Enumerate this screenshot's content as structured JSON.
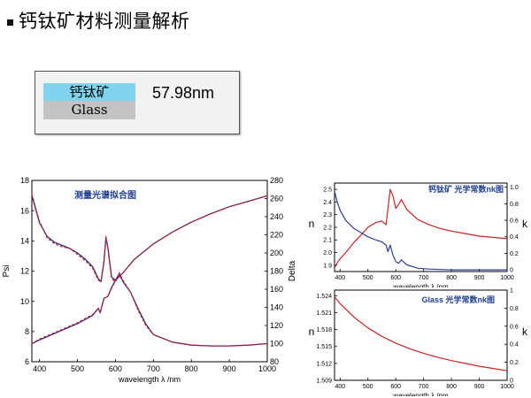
{
  "page": {
    "title": "钙钛矿材料测量解析"
  },
  "stack": {
    "top_layer": "钙钛矿",
    "bottom_layer": "Glass",
    "thickness": "57.98nm"
  },
  "colors": {
    "measured": "#2b2b8c",
    "fitted": "#cc2222",
    "layer_top": "#7fd3ef",
    "layer_bottom": "#c3c3c3"
  },
  "chart_data": [
    {
      "type": "line",
      "title": "测量光谱拟合图",
      "xlabel": "wavelength λ /nm",
      "ylabel": "Psi",
      "y2label": "Delta",
      "xlim": [
        380,
        1000
      ],
      "ylim": [
        6,
        18
      ],
      "y2lim": [
        80,
        280
      ],
      "xticks": [
        400,
        500,
        600,
        700,
        800,
        900,
        1000
      ],
      "yticks": [
        6,
        8,
        10,
        12,
        14,
        16,
        18
      ],
      "y2ticks": [
        80,
        100,
        120,
        140,
        160,
        180,
        200,
        220,
        240,
        260,
        280
      ],
      "series": [
        {
          "axis": "left",
          "style": "measured",
          "x": [
            380,
            390,
            400,
            420,
            440,
            460,
            480,
            500,
            520,
            540,
            555,
            562,
            570,
            575,
            580,
            590,
            600,
            610,
            620,
            640,
            660,
            680,
            700,
            750,
            800,
            850,
            900,
            950,
            1000
          ],
          "y": [
            17.0,
            16.1,
            15.2,
            14.3,
            13.9,
            13.7,
            13.5,
            13.2,
            12.8,
            12.3,
            11.5,
            11.3,
            12.6,
            14.2,
            13.6,
            11.6,
            11.4,
            11.8,
            11.3,
            10.6,
            9.5,
            8.5,
            7.8,
            7.3,
            7.1,
            7.05,
            7.05,
            7.1,
            7.2
          ]
        },
        {
          "axis": "left",
          "style": "fitted",
          "x": [
            380,
            390,
            400,
            420,
            440,
            460,
            480,
            500,
            520,
            540,
            555,
            562,
            570,
            575,
            580,
            590,
            600,
            610,
            620,
            640,
            660,
            680,
            700,
            750,
            800,
            850,
            900,
            950,
            1000
          ],
          "y": [
            17.1,
            16.2,
            15.3,
            14.2,
            13.8,
            13.6,
            13.5,
            13.1,
            12.7,
            12.2,
            11.4,
            11.3,
            12.7,
            14.3,
            13.5,
            11.5,
            11.3,
            11.9,
            11.4,
            10.6,
            9.4,
            8.4,
            7.8,
            7.3,
            7.1,
            7.05,
            7.05,
            7.1,
            7.2
          ]
        },
        {
          "axis": "right",
          "style": "measured",
          "x": [
            380,
            400,
            450,
            500,
            540,
            555,
            560,
            570,
            580,
            590,
            600,
            620,
            650,
            700,
            750,
            800,
            850,
            900,
            950,
            1000
          ],
          "y": [
            100,
            104,
            113,
            122,
            131,
            139,
            134,
            150,
            152,
            162,
            170,
            178,
            193,
            210,
            223,
            234,
            243,
            251,
            257,
            263
          ]
        },
        {
          "axis": "right",
          "style": "fitted",
          "x": [
            380,
            400,
            450,
            500,
            540,
            555,
            560,
            570,
            580,
            590,
            600,
            620,
            650,
            700,
            750,
            800,
            850,
            900,
            950,
            1000
          ],
          "y": [
            100,
            105,
            114,
            123,
            132,
            139,
            135,
            150,
            152,
            161,
            169,
            178,
            193,
            210,
            223,
            234,
            243,
            251,
            257,
            263
          ]
        }
      ]
    },
    {
      "type": "line",
      "title": "钙钛矿 光学常数nk图",
      "xlabel": "wavelength λ /nm",
      "ylabel": "n",
      "y2label": "k",
      "xlim": [
        380,
        1000
      ],
      "ylim": [
        1.85,
        2.55
      ],
      "y2lim": [
        -0.02,
        1.05
      ],
      "xticks": [
        400,
        500,
        600,
        700,
        800,
        900,
        1000
      ],
      "yticks": [
        1.9,
        2.0,
        2.1,
        2.2,
        2.3,
        2.4,
        2.5
      ],
      "ytick_labels": [
        "1.9",
        "2.0",
        "2.1",
        "2.2",
        "2.3",
        "2.4",
        "2.5"
      ],
      "y2ticks": [
        0,
        0.2,
        0.4,
        0.6,
        0.8,
        1.0
      ],
      "y2tick_labels": [
        "0",
        "0.2",
        "0.4",
        "0.6",
        "0.8",
        "1.0"
      ],
      "series": [
        {
          "axis": "left",
          "role": "n",
          "color": "#cc2222",
          "x": [
            380,
            390,
            400,
            420,
            450,
            480,
            500,
            530,
            550,
            565,
            572,
            580,
            590,
            600,
            610,
            620,
            640,
            680,
            720,
            760,
            800,
            850,
            900,
            950,
            1000
          ],
          "y": [
            1.88,
            1.92,
            1.95,
            2.0,
            2.08,
            2.15,
            2.2,
            2.24,
            2.25,
            2.22,
            2.35,
            2.5,
            2.45,
            2.35,
            2.38,
            2.42,
            2.34,
            2.26,
            2.22,
            2.19,
            2.17,
            2.15,
            2.13,
            2.12,
            2.11
          ]
        },
        {
          "axis": "right",
          "role": "k",
          "color": "#2b3f8c",
          "x": [
            380,
            390,
            400,
            420,
            450,
            480,
            500,
            530,
            550,
            565,
            572,
            580,
            590,
            600,
            610,
            620,
            640,
            680,
            720,
            760,
            800,
            850,
            900,
            950,
            1000
          ],
          "y": [
            0.95,
            0.82,
            0.72,
            0.6,
            0.5,
            0.44,
            0.4,
            0.36,
            0.34,
            0.3,
            0.22,
            0.3,
            0.18,
            0.1,
            0.08,
            0.12,
            0.06,
            0.02,
            0.01,
            0.005,
            0,
            0,
            0,
            0,
            0
          ]
        }
      ]
    },
    {
      "type": "line",
      "title": "Glass 光学常数nk图",
      "xlabel": "wavelength λ /nm",
      "ylabel": "n",
      "y2label": "k",
      "xlim": [
        380,
        1000
      ],
      "ylim": [
        1.509,
        1.525
      ],
      "y2lim": [
        0,
        1
      ],
      "xticks": [
        400,
        500,
        600,
        700,
        800,
        900,
        1000
      ],
      "yticks": [
        1.509,
        1.512,
        1.515,
        1.518,
        1.521,
        1.524
      ],
      "ytick_labels": [
        "1.509",
        "1.512",
        "1.515",
        "1.518",
        "1.521",
        "1.524"
      ],
      "y2ticks": [
        0,
        0.2,
        0.4,
        0.6,
        0.8,
        1.0
      ],
      "y2tick_labels": [
        "0",
        "0.2",
        "0.4",
        "0.6",
        "0.8",
        "1"
      ],
      "series": [
        {
          "axis": "left",
          "role": "n",
          "color": "#cc2222",
          "x": [
            380,
            400,
            450,
            500,
            550,
            600,
            650,
            700,
            750,
            800,
            850,
            900,
            950,
            1000
          ],
          "y": [
            1.5238,
            1.5226,
            1.5202,
            1.5183,
            1.5168,
            1.5156,
            1.5146,
            1.5138,
            1.5131,
            1.5125,
            1.512,
            1.5115,
            1.5111,
            1.5107
          ]
        }
      ]
    }
  ]
}
